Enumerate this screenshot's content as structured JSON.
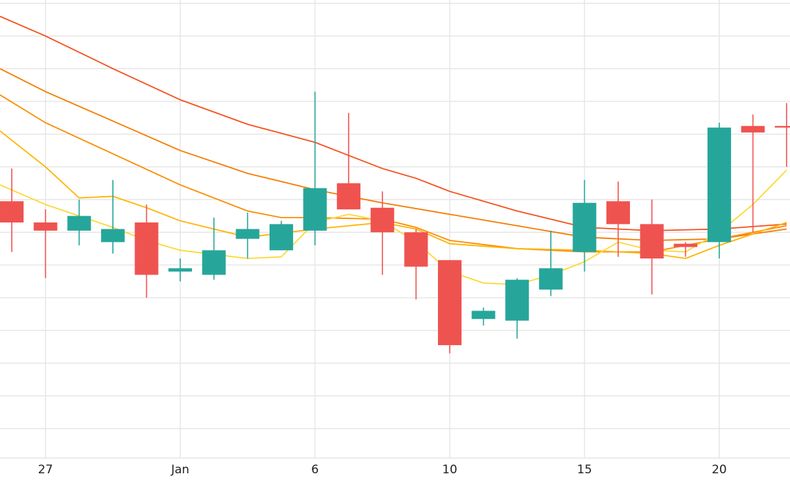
{
  "chart_data": {
    "type": "candlestick",
    "title": "",
    "xlabel": "",
    "ylabel": "",
    "grid": true,
    "x_ticks": [
      {
        "label": "27",
        "day": 0
      },
      {
        "label": "Jan",
        "day": 4
      },
      {
        "label": "6",
        "day": 8
      },
      {
        "label": "10",
        "day": 12
      },
      {
        "label": "15",
        "day": 16
      },
      {
        "label": "20",
        "day": 20
      }
    ],
    "y_grid_values": [
      7,
      6,
      5,
      4,
      3,
      2,
      1,
      0,
      -1,
      -2,
      -3,
      -4,
      -5,
      -6
    ],
    "ylim": [
      -6.9,
      7.1
    ],
    "xlim": [
      -1.35,
      22.1
    ],
    "colors": {
      "up": "#26a69a",
      "down": "#ef5350",
      "grid": "#e6e6e6"
    },
    "candles": [
      {
        "day": -1,
        "open": 0.95,
        "high": 1.95,
        "low": -0.6,
        "close": 0.3
      },
      {
        "day": 0,
        "open": 0.3,
        "high": 0.7,
        "low": -1.4,
        "close": 0.05
      },
      {
        "day": 1,
        "open": 0.05,
        "high": 1.0,
        "low": -0.4,
        "close": 0.5
      },
      {
        "day": 2,
        "open": -0.3,
        "high": 1.6,
        "low": -0.65,
        "close": 0.1
      },
      {
        "day": 3,
        "open": 0.3,
        "high": 0.85,
        "low": -2.0,
        "close": -1.3
      },
      {
        "day": 4,
        "open": -1.2,
        "high": -0.8,
        "low": -1.5,
        "close": -1.1
      },
      {
        "day": 5,
        "open": -1.3,
        "high": 0.45,
        "low": -1.45,
        "close": -0.55
      },
      {
        "day": 6,
        "open": -0.2,
        "high": 0.6,
        "low": -0.8,
        "close": 0.1
      },
      {
        "day": 7,
        "open": -0.55,
        "high": 0.35,
        "low": -0.55,
        "close": 0.25
      },
      {
        "day": 8,
        "open": 0.05,
        "high": 4.3,
        "low": -0.4,
        "close": 1.35
      },
      {
        "day": 9,
        "open": 1.5,
        "high": 3.65,
        "low": 0.7,
        "close": 0.7
      },
      {
        "day": 10,
        "open": 0.75,
        "high": 1.25,
        "low": -1.3,
        "close": 0.0
      },
      {
        "day": 11,
        "open": 0.0,
        "high": 0.1,
        "low": -2.05,
        "close": -1.05
      },
      {
        "day": 12,
        "open": -0.85,
        "high": -0.85,
        "low": -3.7,
        "close": -3.45
      },
      {
        "day": 13,
        "open": -2.65,
        "high": -2.3,
        "low": -2.85,
        "close": -2.4
      },
      {
        "day": 14,
        "open": -2.7,
        "high": -1.4,
        "low": -3.25,
        "close": -1.45
      },
      {
        "day": 15,
        "open": -1.75,
        "high": 0.05,
        "low": -1.95,
        "close": -1.1
      },
      {
        "day": 16,
        "open": -0.6,
        "high": 1.6,
        "low": -1.2,
        "close": 0.9
      },
      {
        "day": 17,
        "open": 0.95,
        "high": 1.55,
        "low": -0.75,
        "close": 0.25
      },
      {
        "day": 18,
        "open": 0.25,
        "high": 1.0,
        "low": -1.9,
        "close": -0.8
      },
      {
        "day": 19,
        "open": -0.35,
        "high": -0.3,
        "low": -0.75,
        "close": -0.45
      },
      {
        "day": 20,
        "open": -0.3,
        "high": 3.35,
        "low": -0.8,
        "close": 3.2
      },
      {
        "day": 21,
        "open": 3.25,
        "high": 3.6,
        "low": 0.0,
        "close": 3.05
      },
      {
        "day": 22,
        "open": 3.25,
        "high": 3.95,
        "low": 2.0,
        "close": 3.2
      }
    ],
    "moving_averages": [
      {
        "color": "#f4511e",
        "points": [
          [
            -1.35,
            6.6
          ],
          [
            0,
            6.0
          ],
          [
            2,
            5.0
          ],
          [
            4,
            4.05
          ],
          [
            6,
            3.3
          ],
          [
            8,
            2.75
          ],
          [
            10,
            1.95
          ],
          [
            11,
            1.65
          ],
          [
            12,
            1.25
          ],
          [
            14,
            0.65
          ],
          [
            16,
            0.15
          ],
          [
            18,
            0.05
          ],
          [
            20,
            0.1
          ],
          [
            22,
            0.25
          ]
        ]
      },
      {
        "color": "#f57c00",
        "points": [
          [
            -1.35,
            5.0
          ],
          [
            0,
            4.3
          ],
          [
            2,
            3.4
          ],
          [
            4,
            2.5
          ],
          [
            6,
            1.8
          ],
          [
            8,
            1.3
          ],
          [
            10,
            0.9
          ],
          [
            12,
            0.55
          ],
          [
            14,
            0.2
          ],
          [
            16,
            -0.15
          ],
          [
            18,
            -0.25
          ],
          [
            20,
            -0.2
          ],
          [
            22,
            0.1
          ]
        ]
      },
      {
        "color": "#fb8c00",
        "points": [
          [
            -1.35,
            4.2
          ],
          [
            0,
            3.35
          ],
          [
            2,
            2.4
          ],
          [
            4,
            1.45
          ],
          [
            6,
            0.65
          ],
          [
            7,
            0.45
          ],
          [
            8,
            0.45
          ],
          [
            10,
            0.4
          ],
          [
            11,
            0.15
          ],
          [
            12,
            -0.25
          ],
          [
            14,
            -0.5
          ],
          [
            16,
            -0.6
          ],
          [
            18,
            -0.6
          ],
          [
            20,
            -0.2
          ],
          [
            22,
            0.2
          ]
        ]
      },
      {
        "color": "#ffb300",
        "points": [
          [
            -1.35,
            3.1
          ],
          [
            0,
            2.0
          ],
          [
            1,
            1.05
          ],
          [
            2,
            1.1
          ],
          [
            3,
            0.75
          ],
          [
            4,
            0.35
          ],
          [
            6,
            -0.15
          ],
          [
            8,
            0.1
          ],
          [
            10,
            0.3
          ],
          [
            11,
            0.1
          ],
          [
            12,
            -0.35
          ],
          [
            14,
            -0.5
          ],
          [
            16,
            -0.55
          ],
          [
            18,
            -0.65
          ],
          [
            19,
            -0.8
          ],
          [
            20,
            -0.4
          ],
          [
            22,
            0.3
          ]
        ]
      },
      {
        "color": "#fdd835",
        "points": [
          [
            -1.35,
            1.45
          ],
          [
            0,
            0.85
          ],
          [
            1,
            0.5
          ],
          [
            2,
            0.15
          ],
          [
            3,
            -0.25
          ],
          [
            4,
            -0.55
          ],
          [
            6,
            -0.8
          ],
          [
            7,
            -0.75
          ],
          [
            8,
            0.3
          ],
          [
            9,
            0.55
          ],
          [
            10,
            0.35
          ],
          [
            11,
            -0.3
          ],
          [
            12,
            -1.2
          ],
          [
            13,
            -1.55
          ],
          [
            14,
            -1.6
          ],
          [
            15,
            -1.3
          ],
          [
            16,
            -0.9
          ],
          [
            17,
            -0.3
          ],
          [
            18,
            -0.55
          ],
          [
            19,
            -0.6
          ],
          [
            20,
            0.0
          ],
          [
            21,
            0.85
          ],
          [
            22,
            1.9
          ]
        ]
      }
    ]
  }
}
